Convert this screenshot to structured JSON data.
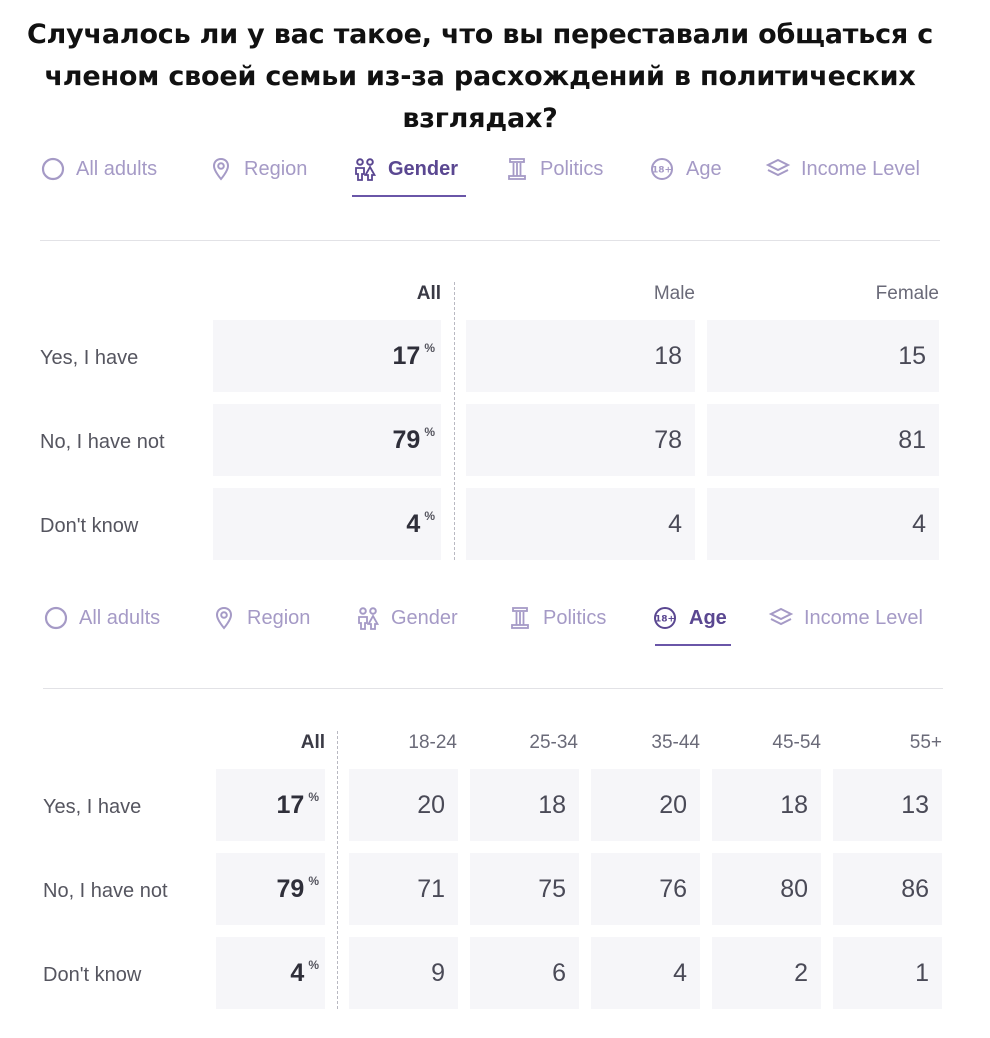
{
  "title": "Случалось ли у вас такое, что вы переставали общаться с членом своей семьи из-за расхождений в политических взглядах?",
  "colors": {
    "active_tab": "#5a4791",
    "inactive_tab": "#a59ac6",
    "cell_bg": "#f6f6f9"
  },
  "tabs": [
    {
      "label": "All adults",
      "icon": "circle-icon"
    },
    {
      "label": "Region",
      "icon": "location-pin-icon"
    },
    {
      "label": "Gender",
      "icon": "people-icon"
    },
    {
      "label": "Politics",
      "icon": "pillar-icon"
    },
    {
      "label": "Age",
      "icon": "age-18-plus-icon"
    },
    {
      "label": "Income Level",
      "icon": "layers-icon"
    }
  ],
  "gender_table": {
    "active_tab": "Gender",
    "headers": {
      "all": "All",
      "male": "Male",
      "female": "Female"
    },
    "percent_sign": "%",
    "rows": [
      {
        "label": "Yes, I have",
        "all": "17",
        "male": "18",
        "female": "15"
      },
      {
        "label": "No, I have not",
        "all": "79",
        "male": "78",
        "female": "81"
      },
      {
        "label": "Don't know",
        "all": "4",
        "male": "4",
        "female": "4"
      }
    ]
  },
  "age_table": {
    "active_tab": "Age",
    "headers": [
      "All",
      "18-24",
      "25-34",
      "35-44",
      "45-54",
      "55+"
    ],
    "percent_sign": "%",
    "rows": [
      {
        "label": "Yes, I have",
        "values": [
          "17",
          "20",
          "18",
          "20",
          "18",
          "13"
        ]
      },
      {
        "label": "No, I have not",
        "values": [
          "79",
          "71",
          "75",
          "76",
          "80",
          "86"
        ]
      },
      {
        "label": "Don't know",
        "values": [
          "4",
          "9",
          "6",
          "4",
          "2",
          "1"
        ]
      }
    ]
  }
}
